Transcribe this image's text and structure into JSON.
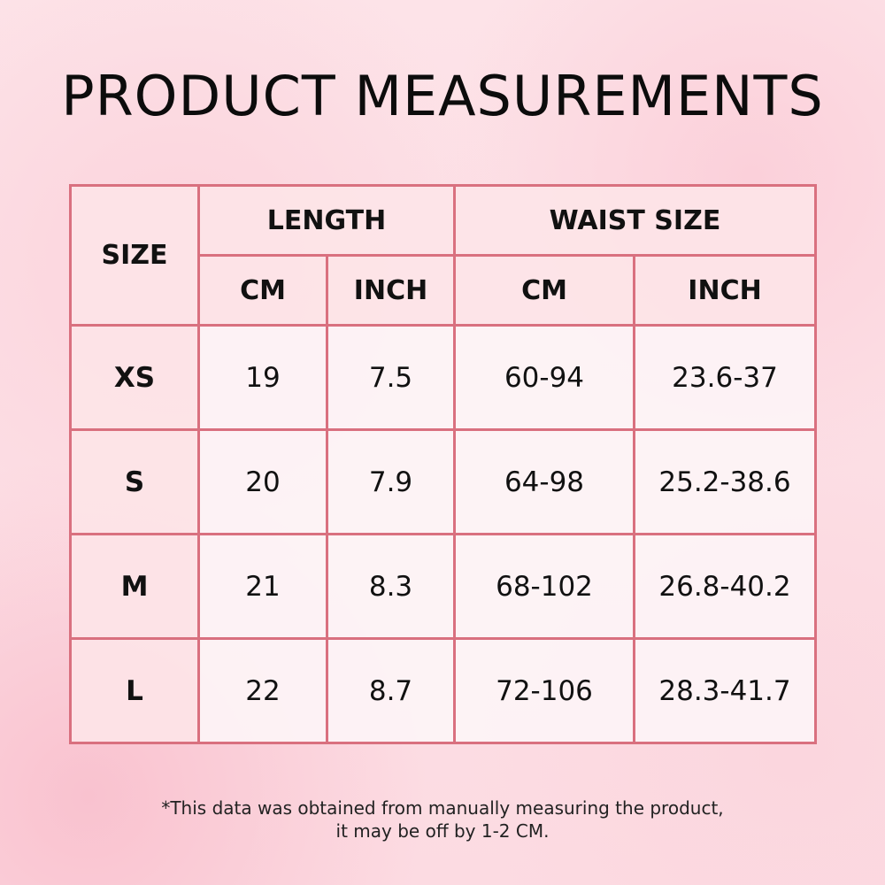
{
  "title": "PRODUCT MEASUREMENTS",
  "table": {
    "size_header": "SIZE",
    "groups": [
      "LENGTH",
      "WAIST SIZE"
    ],
    "units": [
      "CM",
      "INCH",
      "CM",
      "INCH"
    ],
    "rows": [
      [
        "XS",
        "19",
        "7.5",
        "60-94",
        "23.6-37"
      ],
      [
        "S",
        "20",
        "7.9",
        "64-98",
        "25.2-38.6"
      ],
      [
        "M",
        "21",
        "8.3",
        "68-102",
        "26.8-40.2"
      ],
      [
        "L",
        "22",
        "8.7",
        "72-106",
        "28.3-41.7"
      ]
    ]
  },
  "note": {
    "line1": "*This data was obtained from manually measuring the product,",
    "line2": "it may be off by 1-2 CM."
  },
  "colors": {
    "border": "#d9707f",
    "header_bg": "#fde4e8",
    "cell_bg": "#fdf4f6"
  }
}
